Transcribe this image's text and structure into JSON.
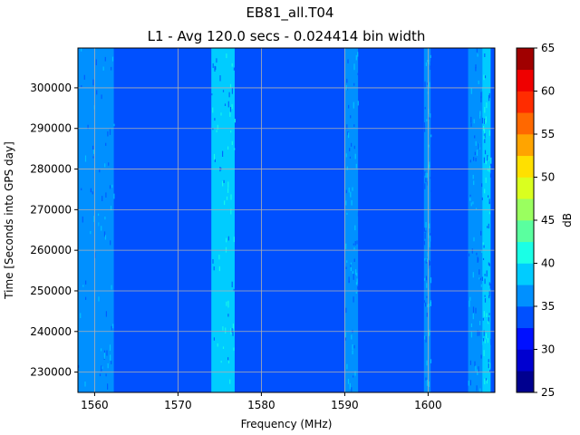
{
  "chart_data": {
    "type": "heatmap",
    "title": "EB81_all.T04",
    "subtitle": "L1 - Avg 120.0 secs - 0.024414 bin width",
    "xlabel": "Frequency (MHz)",
    "ylabel": "Time [Seconds into GPS day]",
    "xlim": [
      1558.0,
      1608.0
    ],
    "ylim": [
      225000,
      309800
    ],
    "xticks": [
      1560,
      1570,
      1580,
      1590,
      1600
    ],
    "yticks": [
      230000,
      240000,
      250000,
      260000,
      270000,
      280000,
      290000,
      300000
    ],
    "grid": true,
    "colorbar": {
      "label": "dB",
      "levels": [
        25,
        27.5,
        30,
        32.5,
        35,
        37.5,
        40,
        42.5,
        45,
        47.5,
        50,
        52.5,
        55,
        57.5,
        60,
        62.5,
        65
      ],
      "ticks": [
        25,
        30,
        35,
        40,
        45,
        50,
        55,
        60,
        65
      ],
      "colors": [
        "#00008f",
        "#0000d0",
        "#0010ff",
        "#0050ff",
        "#0090ff",
        "#00ccff",
        "#1affe6",
        "#5aff9f",
        "#9aff5f",
        "#daff1f",
        "#ffe000",
        "#ffa400",
        "#ff6800",
        "#ff2c00",
        "#ef0000",
        "#a00000"
      ]
    },
    "background_level_db": 33.5,
    "bands": [
      {
        "freq_range": [
          1558.0,
          1562.3
        ],
        "level_db": 36.5
      },
      {
        "freq_range": [
          1574.0,
          1576.8
        ],
        "level_db": 37.5
      },
      {
        "freq_range": [
          1590.0,
          1591.6
        ],
        "level_db": 37.0
      },
      {
        "freq_range": [
          1599.5,
          1600.3
        ],
        "level_db": 36.5
      },
      {
        "freq_range": [
          1604.8,
          1606.5
        ],
        "level_db": 36.5
      },
      {
        "freq_range": [
          1606.5,
          1607.5
        ],
        "level_db": 38.0
      }
    ]
  }
}
